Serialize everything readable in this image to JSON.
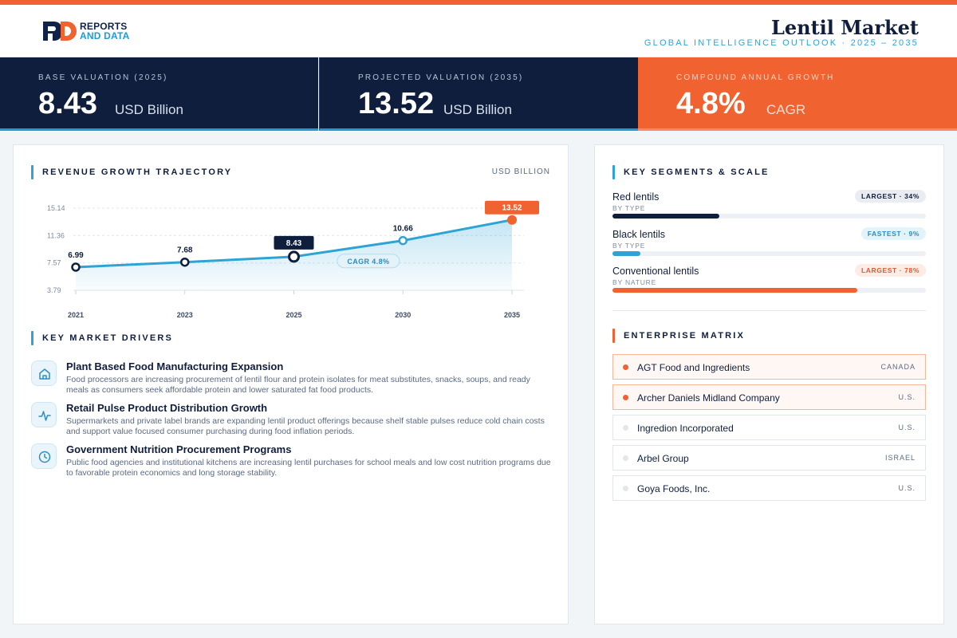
{
  "header": {
    "logo_line1": "REPORTS",
    "logo_line2": "AND DATA",
    "title": "Lentil Market",
    "subtitle": "GLOBAL INTELLIGENCE OUTLOOK  ·  2025 – 2035"
  },
  "kpis": [
    {
      "label": "BASE VALUATION (2025)",
      "value": "8.43",
      "unit": "USD Billion"
    },
    {
      "label": "PROJECTED VALUATION (2035)",
      "value": "13.52",
      "unit": "USD Billion"
    },
    {
      "label": "COMPOUND ANNUAL GROWTH",
      "value": "4.8%",
      "unit": "CAGR"
    }
  ],
  "revenue": {
    "heading": "REVENUE GROWTH TRAJECTORY",
    "unit_tag": "USD BILLION",
    "cagr_label": "CAGR 4.8%"
  },
  "chart_data": {
    "type": "area",
    "x": [
      "2021",
      "2023",
      "2025",
      "2030",
      "2035"
    ],
    "values": [
      6.99,
      7.68,
      8.43,
      10.66,
      13.52
    ],
    "value_labels": [
      "6.99",
      "7.68",
      "8.43",
      "10.66",
      "13.52"
    ],
    "y_ticks": [
      "15.14",
      "11.36",
      "7.57",
      "3.79"
    ],
    "ylim": [
      3.79,
      15.14
    ],
    "highlight": {
      "base_index": 2,
      "projected_index": 4
    },
    "grid": true,
    "colors": {
      "line": "#2ea3d6",
      "base_label": "#0f1e3d",
      "projected_label": "#f0622f"
    }
  },
  "drivers": {
    "heading": "KEY MARKET DRIVERS",
    "items": [
      {
        "icon": "home-icon",
        "title": "Plant Based Food Manufacturing Expansion",
        "desc": "Food processors are increasing procurement of lentil flour and protein isolates for meat substitutes, snacks, soups, and ready meals as consumers seek affordable protein and lower saturated fat food products."
      },
      {
        "icon": "pulse-icon",
        "title": "Retail Pulse Product Distribution Growth",
        "desc": "Supermarkets and private label brands are expanding lentil product offerings because shelf stable pulses reduce cold chain costs and support value focused consumer purchasing during food inflation periods."
      },
      {
        "icon": "clock-icon",
        "title": "Government Nutrition Procurement Programs",
        "desc": "Public food agencies and institutional kitchens are increasing lentil purchases for school meals and low cost nutrition programs due to favorable protein economics and long storage stability."
      }
    ]
  },
  "segments": {
    "heading": "KEY SEGMENTS & SCALE",
    "items": [
      {
        "name": "Red lentils",
        "type": "BY TYPE",
        "badge": "LARGEST · 34%",
        "share": 34,
        "style": "navy"
      },
      {
        "name": "Black lentils",
        "type": "BY TYPE",
        "badge": "FASTEST · 9%",
        "share": 9,
        "style": "blue"
      },
      {
        "name": "Conventional lentils",
        "type": "BY NATURE",
        "badge": "LARGEST · 78%",
        "share": 78,
        "style": "orange"
      }
    ]
  },
  "enterprise": {
    "heading": "ENTERPRISE MATRIX",
    "items": [
      {
        "name": "AGT Food and Ingredients",
        "country": "CANADA",
        "highlight": true
      },
      {
        "name": "Archer Daniels Midland Company",
        "country": "U.S.",
        "highlight": true
      },
      {
        "name": "Ingredion Incorporated",
        "country": "U.S.",
        "highlight": false
      },
      {
        "name": "Arbel Group",
        "country": "ISRAEL",
        "highlight": false
      },
      {
        "name": "Goya Foods, Inc.",
        "country": "U.S.",
        "highlight": false
      }
    ]
  }
}
